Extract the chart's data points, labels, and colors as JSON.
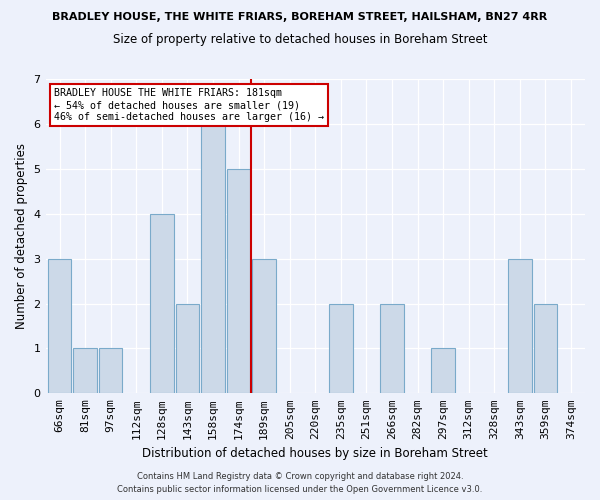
{
  "title": "BRADLEY HOUSE, THE WHITE FRIARS, BOREHAM STREET, HAILSHAM, BN27 4RR",
  "subtitle": "Size of property relative to detached houses in Boreham Street",
  "xlabel": "Distribution of detached houses by size in Boreham Street",
  "ylabel": "Number of detached properties",
  "bins": [
    "66sqm",
    "81sqm",
    "97sqm",
    "112sqm",
    "128sqm",
    "143sqm",
    "158sqm",
    "174sqm",
    "189sqm",
    "205sqm",
    "220sqm",
    "235sqm",
    "251sqm",
    "266sqm",
    "282sqm",
    "297sqm",
    "312sqm",
    "328sqm",
    "343sqm",
    "359sqm",
    "374sqm"
  ],
  "counts": [
    3,
    1,
    1,
    0,
    4,
    2,
    6,
    5,
    3,
    0,
    0,
    2,
    0,
    2,
    0,
    1,
    0,
    0,
    3,
    2,
    0
  ],
  "property_line_bin": 7,
  "bar_color": "#ccd9e8",
  "bar_edge_color": "#7aaaca",
  "property_line_color": "#cc0000",
  "ylim_max": 7,
  "annotation_title": "BRADLEY HOUSE THE WHITE FRIARS: 181sqm",
  "annotation_line2": "← 54% of detached houses are smaller (19)",
  "annotation_line3": "46% of semi-detached houses are larger (16) →",
  "footnote1": "Contains HM Land Registry data © Crown copyright and database right 2024.",
  "footnote2": "Contains public sector information licensed under the Open Government Licence v3.0.",
  "background_color": "#edf1fb"
}
